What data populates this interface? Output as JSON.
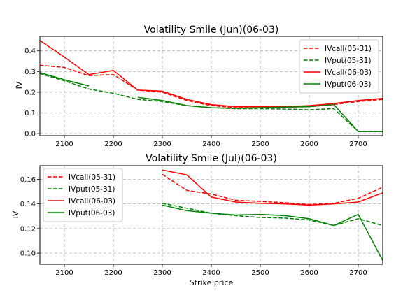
{
  "figure": {
    "xlabel": "Strike price"
  },
  "chart_data": [
    {
      "type": "line",
      "title": "Volatility Smile (Jun)(06-03)",
      "xlabel": "",
      "ylabel": "IV",
      "xlim": [
        2050,
        2750
      ],
      "ylim": [
        -0.01,
        0.47
      ],
      "xticks": [
        2100,
        2200,
        2300,
        2400,
        2500,
        2600,
        2700
      ],
      "yticks": [
        0.0,
        0.1,
        0.2,
        0.3,
        0.4
      ],
      "ytick_labels": [
        "0.0",
        "0.1",
        "0.2",
        "0.3",
        "0.4"
      ],
      "grid": true,
      "legend_position": "top-right",
      "series": [
        {
          "name": "IVcall(05-31)",
          "color": "#ff0000",
          "dashed": true,
          "x": [
            2050,
            2100,
            2150,
            2200,
            2250,
            2300,
            2350,
            2400,
            2450,
            2500,
            2550,
            2600,
            2650,
            2700,
            2750
          ],
          "y": [
            0.33,
            0.32,
            0.28,
            0.285,
            0.21,
            0.2,
            0.16,
            0.135,
            0.125,
            0.125,
            0.128,
            0.13,
            0.14,
            0.155,
            0.165
          ]
        },
        {
          "name": "IVput(05-31)",
          "color": "#008000",
          "dashed": true,
          "x": [
            2050,
            2100,
            2150,
            2200,
            2250,
            2300,
            2350,
            2400,
            2450,
            2500,
            2550,
            2600,
            2650,
            2700,
            2750
          ],
          "y": [
            0.29,
            0.255,
            0.215,
            0.195,
            0.165,
            0.155,
            0.135,
            0.125,
            0.12,
            0.12,
            0.118,
            0.115,
            0.12,
            0.01,
            0.01
          ]
        },
        {
          "name": "IVcall(06-03)",
          "color": "#ff0000",
          "dashed": false,
          "x": [
            2050,
            2100,
            2150,
            2200,
            2250,
            2300,
            2350,
            2400,
            2450,
            2500,
            2550,
            2600,
            2650,
            2700,
            2750
          ],
          "y": [
            0.45,
            0.37,
            0.285,
            0.305,
            0.21,
            0.205,
            0.165,
            0.14,
            0.13,
            0.13,
            0.13,
            0.135,
            0.145,
            0.16,
            0.17
          ]
        },
        {
          "name": "IVput(06-03)",
          "color": "#008000",
          "dashed": false,
          "segments": [
            {
              "x": [
                2050,
                2100,
                2150
              ],
              "y": [
                0.295,
                0.26,
                0.23
              ]
            },
            {
              "x": [
                2250,
                2300,
                2350,
                2400,
                2450,
                2500,
                2550,
                2600,
                2650,
                2700,
                2750
              ],
              "y": [
                0.175,
                0.16,
                0.135,
                0.125,
                0.122,
                0.125,
                0.128,
                0.13,
                0.14,
                0.01,
                0.01
              ]
            }
          ]
        }
      ]
    },
    {
      "type": "line",
      "title": "Volatility Smile (Jul)(06-03)",
      "xlabel": "Strike price",
      "ylabel": "IV",
      "xlim": [
        2050,
        2750
      ],
      "ylim": [
        0.091,
        0.171
      ],
      "xticks": [
        2100,
        2200,
        2300,
        2400,
        2500,
        2600,
        2700
      ],
      "yticks": [
        0.1,
        0.12,
        0.14,
        0.16
      ],
      "ytick_labels": [
        "0.10",
        "0.12",
        "0.14",
        "0.16"
      ],
      "grid": true,
      "legend_position": "top-left",
      "series": [
        {
          "name": "IVcall(05-31)",
          "color": "#ff0000",
          "dashed": true,
          "x": [
            2300,
            2350,
            2400,
            2450,
            2500,
            2550,
            2600,
            2650,
            2700,
            2750
          ],
          "y": [
            0.164,
            0.151,
            0.148,
            0.143,
            0.142,
            0.141,
            0.1395,
            0.1405,
            0.1445,
            0.1535
          ]
        },
        {
          "name": "IVput(05-31)",
          "color": "#008000",
          "dashed": true,
          "x": [
            2300,
            2350,
            2400,
            2450,
            2500,
            2550,
            2600,
            2650,
            2700,
            2750
          ],
          "y": [
            0.1405,
            0.1365,
            0.1325,
            0.1305,
            0.129,
            0.1285,
            0.127,
            0.1225,
            0.128,
            0.1225
          ]
        },
        {
          "name": "IVcall(06-03)",
          "color": "#ff0000",
          "dashed": false,
          "x": [
            2300,
            2350,
            2400,
            2450,
            2500,
            2550,
            2600,
            2650,
            2700,
            2750
          ],
          "y": [
            0.1675,
            0.1635,
            0.1455,
            0.1415,
            0.1405,
            0.14,
            0.139,
            0.14,
            0.1415,
            0.149
          ]
        },
        {
          "name": "IVput(06-03)",
          "color": "#008000",
          "dashed": false,
          "x": [
            2300,
            2350,
            2400,
            2450,
            2500,
            2550,
            2600,
            2650,
            2700,
            2750
          ],
          "y": [
            0.139,
            0.1345,
            0.1325,
            0.131,
            0.1315,
            0.1305,
            0.128,
            0.1225,
            0.1315,
            0.094
          ]
        }
      ]
    }
  ]
}
